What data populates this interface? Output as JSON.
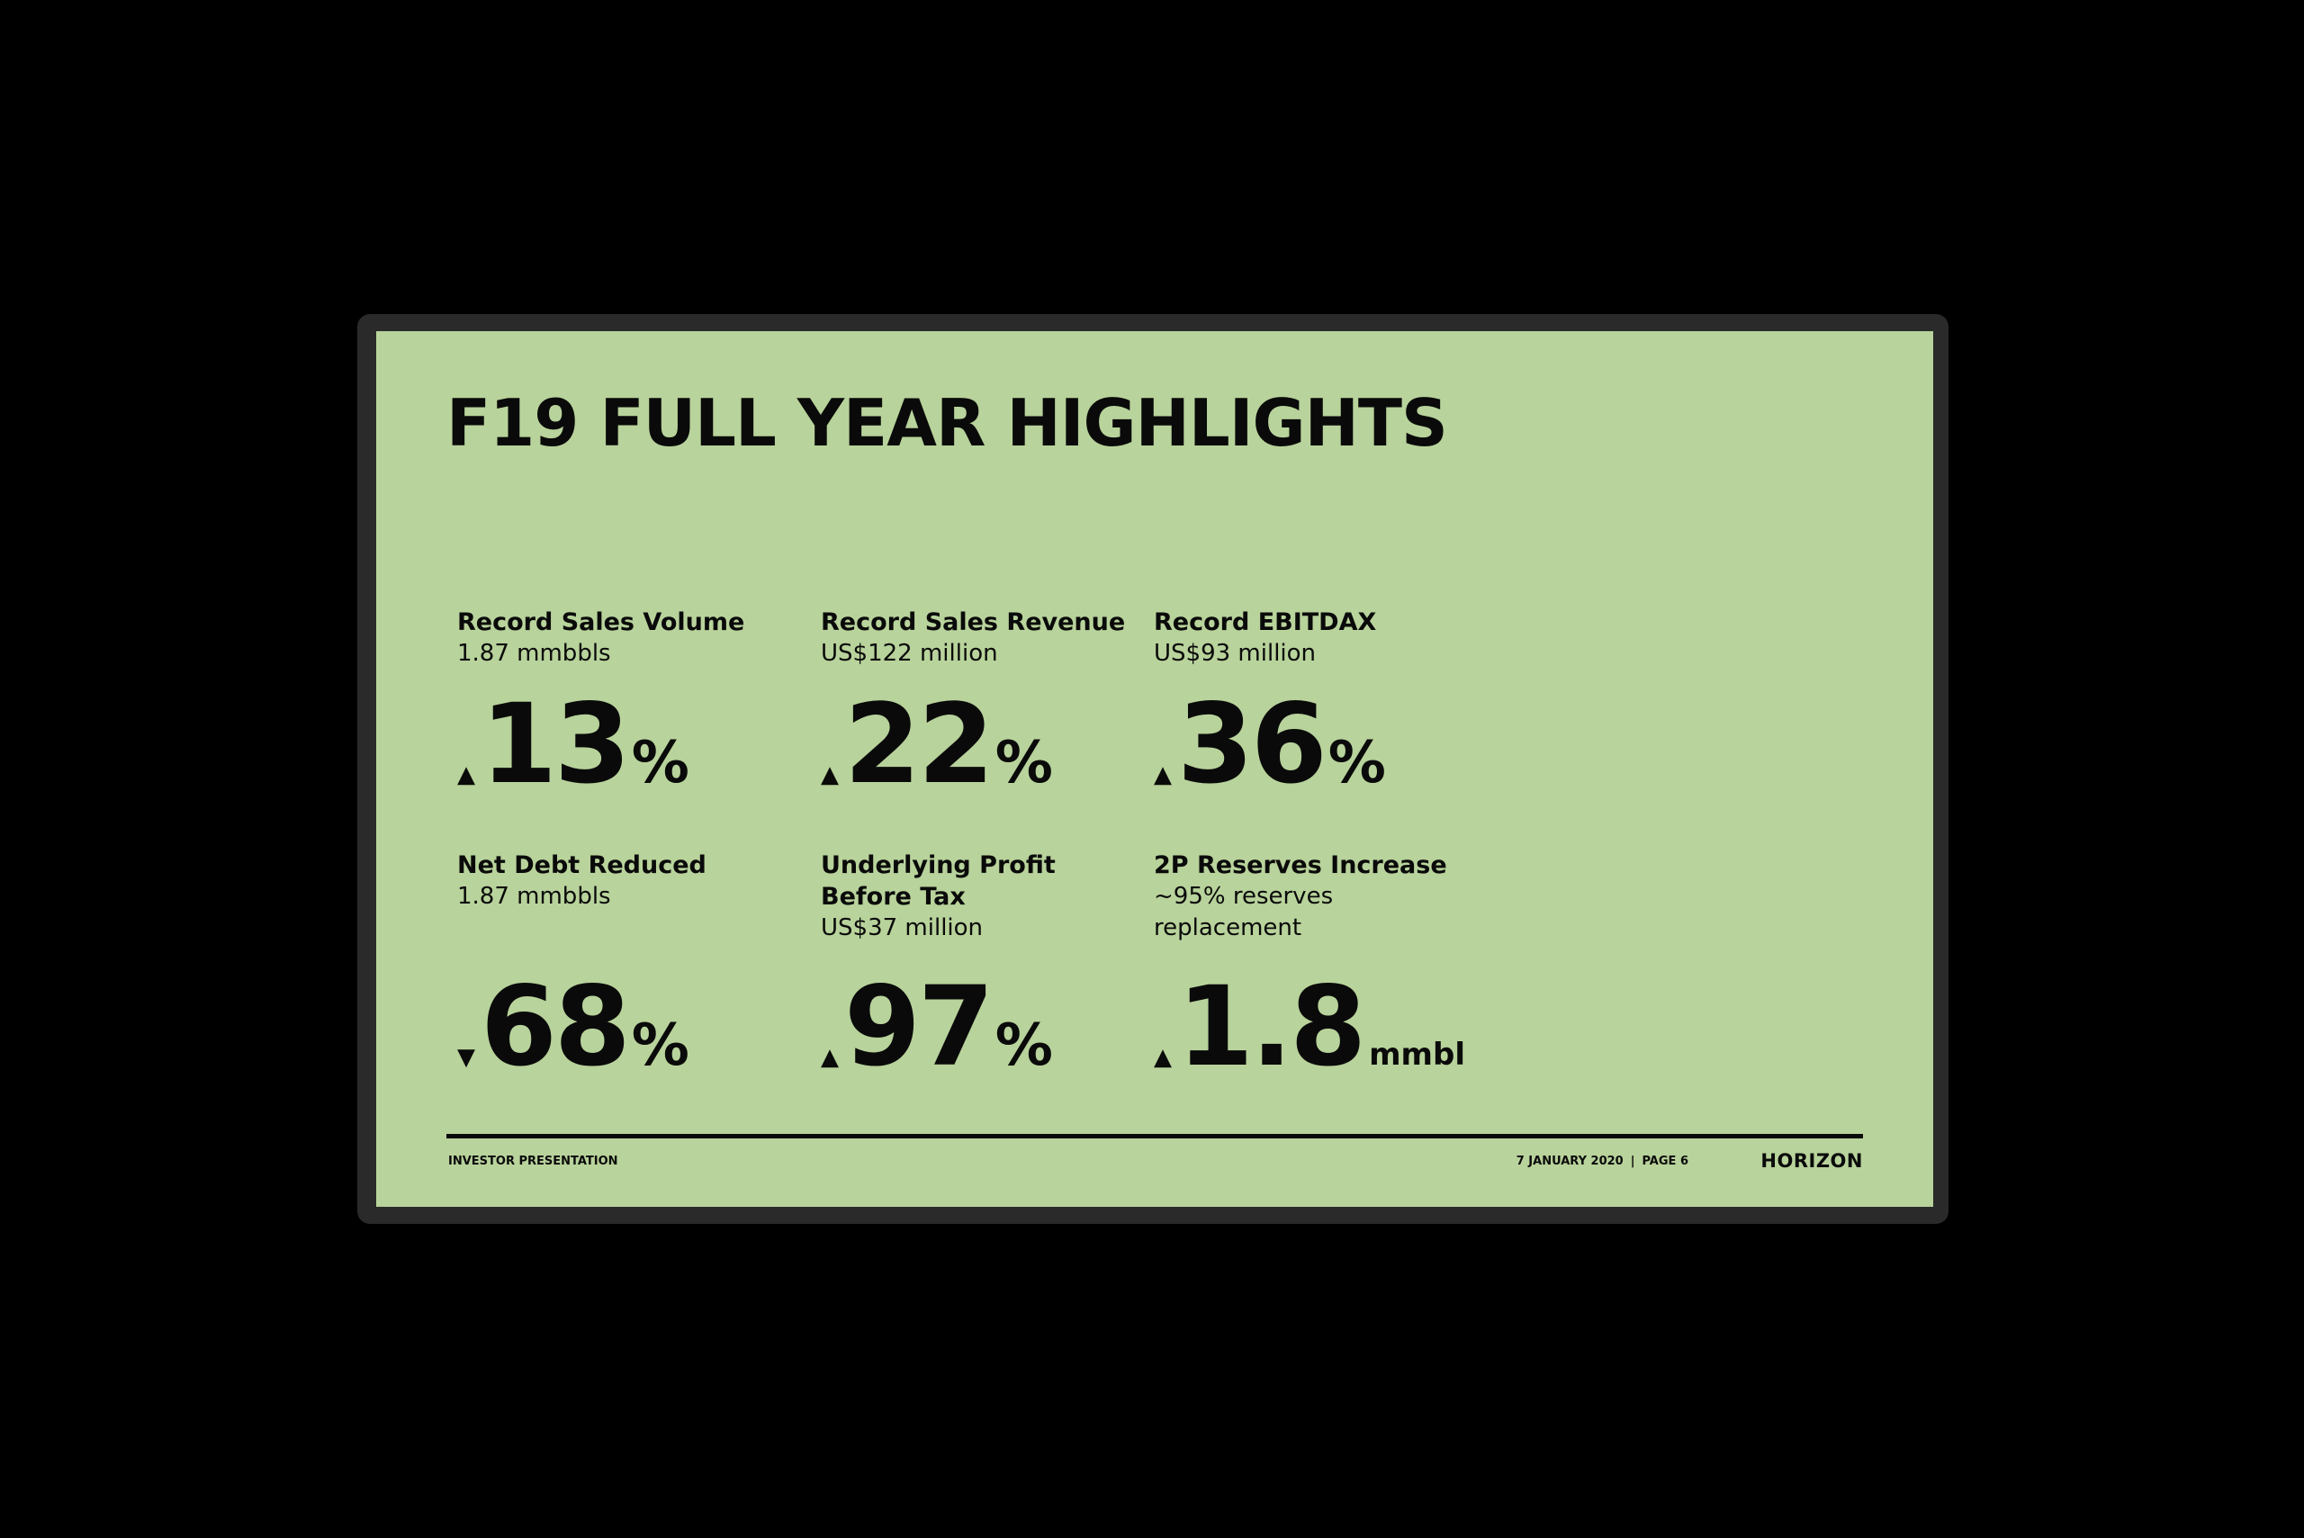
{
  "slide": {
    "title": "F19 FULL YEAR HIGHLIGHTS",
    "background_color": "#b8d39b",
    "text_color": "#0a0a0a"
  },
  "highlights": [
    {
      "label": "Record Sales Volume",
      "sub": "1.87 mmbbls",
      "direction": "up",
      "arrow": "▲",
      "value": "13",
      "unit": "%"
    },
    {
      "label": "Record Sales Revenue",
      "sub": "US$122 million",
      "direction": "up",
      "arrow": "▲",
      "value": "22",
      "unit": "%"
    },
    {
      "label": "Record EBITDAX",
      "sub": "US$93 million",
      "direction": "up",
      "arrow": "▲",
      "value": "36",
      "unit": "%"
    },
    {
      "label": "Net Debt Reduced",
      "sub": "1.87 mmbbls",
      "direction": "down",
      "arrow": "▼",
      "value": "68",
      "unit": "%"
    },
    {
      "label_line1": "Underlying Profit",
      "label_line2": "Before Tax",
      "sub": "US$37 million",
      "direction": "up",
      "arrow": "▲",
      "value": "97",
      "unit": "%"
    },
    {
      "label": "2P Reserves Increase",
      "sub_line1": "~95% reserves",
      "sub_line2": "replacement",
      "direction": "up",
      "arrow": "▲",
      "value": "1.8",
      "unit": "mmbl"
    }
  ],
  "footer": {
    "left": "INVESTOR PRESENTATION",
    "date": "7 JANUARY 2020",
    "separator": "|",
    "page": "PAGE 6",
    "logo": "HORIZON"
  }
}
